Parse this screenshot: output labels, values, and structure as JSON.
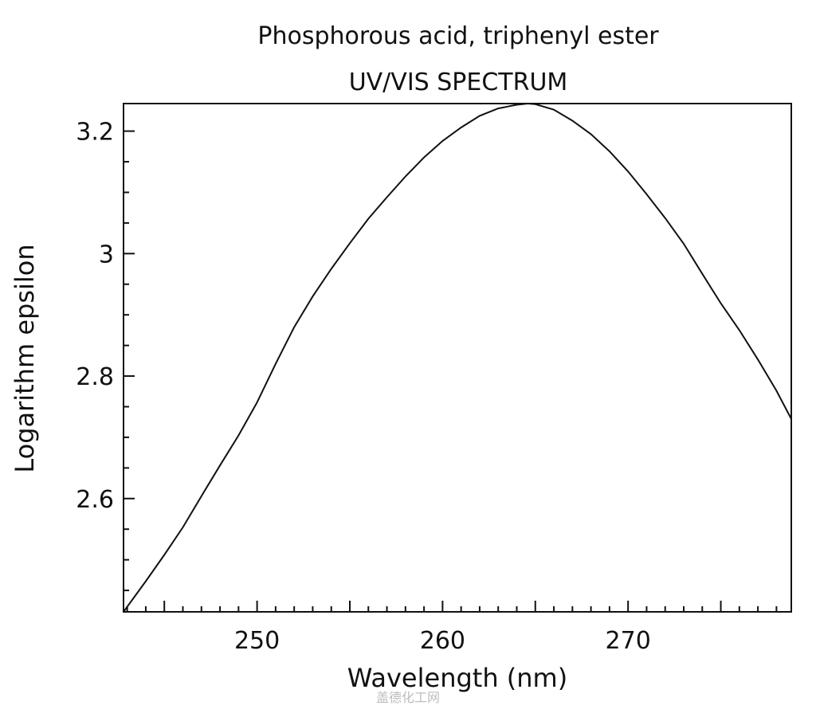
{
  "chart_data": {
    "type": "line",
    "title": "Phosphorous acid, triphenyl ester",
    "subtitle": "UV/VIS SPECTRUM",
    "xlabel": "Wavelength (nm)",
    "ylabel": "Logarithm epsilon",
    "xlim": [
      242.8,
      278.8
    ],
    "ylim": [
      2.415,
      3.245
    ],
    "x_ticks": [
      250,
      260,
      270
    ],
    "x_tick_labels": [
      "250",
      "260",
      "270"
    ],
    "y_ticks": [
      2.6,
      2.8,
      3,
      3.2
    ],
    "y_tick_labels": [
      "2.6",
      "2.8",
      "3",
      "3.2"
    ],
    "grid": false,
    "series": [
      {
        "x": [
          242.8,
          244,
          245,
          246,
          247,
          248,
          249,
          250,
          251,
          252,
          253,
          254,
          255,
          256,
          257,
          258,
          259,
          260,
          261,
          262,
          263,
          264,
          264.6,
          265,
          266,
          267,
          268,
          269,
          270,
          271,
          272,
          273,
          274,
          275,
          276,
          277,
          278,
          278.8
        ],
        "y": [
          2.415,
          2.465,
          2.508,
          2.553,
          2.604,
          2.654,
          2.703,
          2.757,
          2.82,
          2.88,
          2.93,
          2.975,
          3.017,
          3.057,
          3.092,
          3.126,
          3.157,
          3.184,
          3.206,
          3.225,
          3.237,
          3.243,
          3.245,
          3.244,
          3.235,
          3.217,
          3.195,
          3.167,
          3.134,
          3.097,
          3.058,
          3.016,
          2.967,
          2.919,
          2.875,
          2.827,
          2.776,
          2.73
        ]
      }
    ]
  },
  "watermark": "盖德化工网",
  "colors": {
    "line": "#111111",
    "axis": "#111111",
    "background": "#ffffff"
  }
}
